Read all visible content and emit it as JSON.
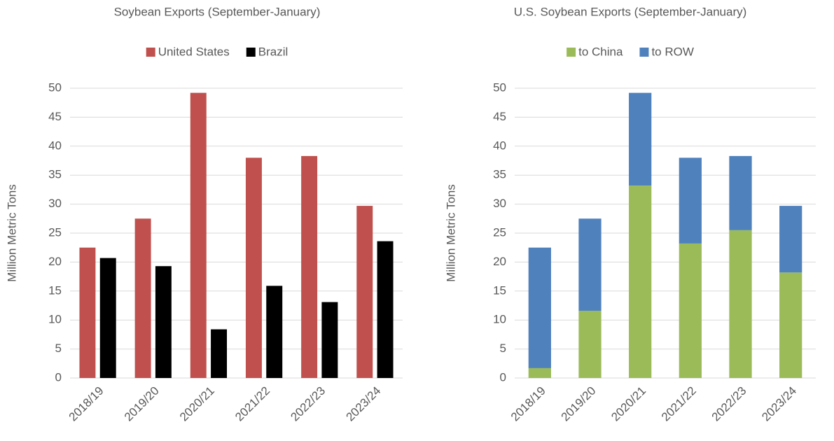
{
  "chart_data": [
    {
      "type": "bar",
      "title": "Soybean Exports (September-January)",
      "y_label": "Million Metric Tons",
      "categories": [
        "2018/19",
        "2019/20",
        "2020/21",
        "2021/22",
        "2022/23",
        "2023/24"
      ],
      "series": [
        {
          "name": "United States",
          "color": "#c0504d",
          "values": [
            22.5,
            27.5,
            49.2,
            38.0,
            38.3,
            29.7
          ]
        },
        {
          "name": "Brazil",
          "color": "#000000",
          "values": [
            20.7,
            19.3,
            8.4,
            15.9,
            13.1,
            23.6
          ]
        }
      ],
      "ylim": [
        0,
        50
      ],
      "yticks": [
        0,
        5,
        10,
        15,
        20,
        25,
        30,
        35,
        40,
        45,
        50
      ],
      "grid": true,
      "legend": "top"
    },
    {
      "type": "stacked_bar",
      "title": "U.S. Soybean Exports (September-January)",
      "y_label": "Million Metric Tons",
      "categories": [
        "2018/19",
        "2019/20",
        "2020/21",
        "2021/22",
        "2022/23",
        "2023/24"
      ],
      "series": [
        {
          "name": "to China",
          "color": "#9bbb59",
          "values": [
            1.7,
            11.6,
            33.2,
            23.2,
            25.5,
            18.2
          ]
        },
        {
          "name": "to ROW",
          "color": "#4f81bd",
          "values": [
            20.8,
            15.9,
            16.0,
            14.8,
            12.8,
            11.5
          ]
        }
      ],
      "ylim": [
        0,
        50
      ],
      "yticks": [
        0,
        5,
        10,
        15,
        20,
        25,
        30,
        35,
        40,
        45,
        50
      ],
      "grid": true,
      "legend": "top"
    }
  ]
}
